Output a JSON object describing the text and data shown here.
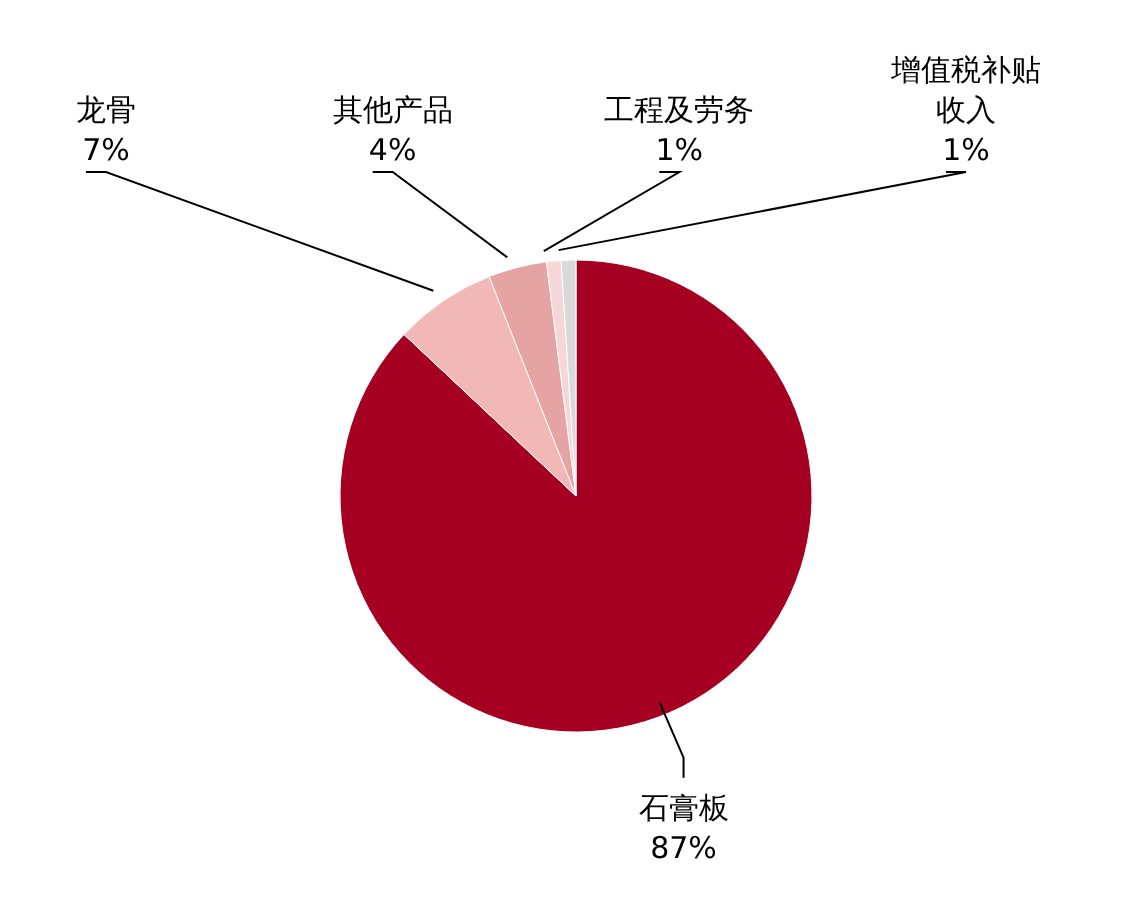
{
  "chart_data": {
    "type": "pie",
    "categories": [
      "石膏板",
      "龙骨",
      "其他产品",
      "工程及劳务",
      "增值税补贴收入"
    ],
    "values": [
      87,
      7,
      4,
      1,
      1
    ],
    "value_labels": [
      "87%",
      "7%",
      "4%",
      "1%",
      "1%"
    ],
    "colors": [
      "#a50021",
      "#f2b8b8",
      "#e6a3a3",
      "#f6d6d6",
      "#d9d9d9"
    ]
  }
}
